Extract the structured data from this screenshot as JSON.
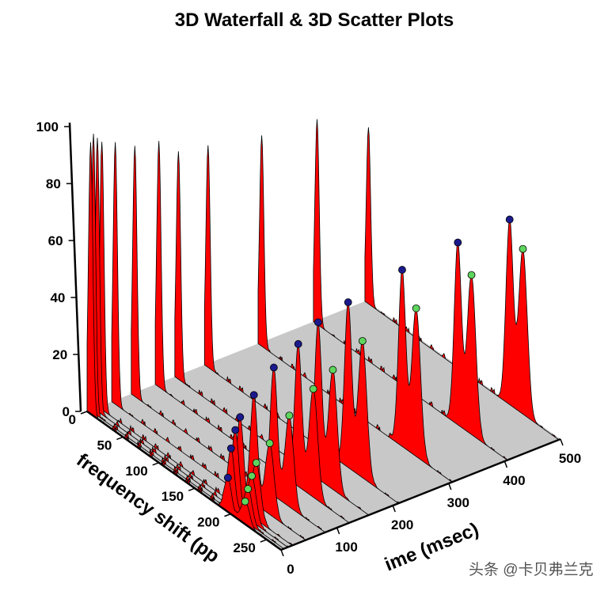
{
  "chart_data": {
    "type": "3d-waterfall-scatter",
    "title": "3D Waterfall & 3D Scatter Plots",
    "xlabel": "frequency shift (pp",
    "ylabel": "ime (msec)",
    "zlabel": "",
    "xlim": [
      0,
      270
    ],
    "ylim": [
      0,
      500
    ],
    "zlim": [
      0,
      100
    ],
    "x_ticks": [
      "0",
      "50",
      "100",
      "150",
      "200",
      "250"
    ],
    "y_ticks": [
      "0",
      "100",
      "200",
      "300",
      "400",
      "500"
    ],
    "z_ticks": [
      "0",
      "20",
      "40",
      "60",
      "80",
      "100"
    ],
    "peak_frequencies": {
      "main": 5,
      "blue": 200,
      "green": 220
    },
    "times": [
      0,
      5,
      12,
      20,
      44,
      79,
      122,
      157,
      210,
      306,
      405,
      497
    ],
    "main_peak_heights": [
      95,
      98,
      96,
      94,
      92,
      88,
      86,
      80,
      78,
      74,
      72,
      62
    ],
    "scatter_series": [
      {
        "color": "#1a1a8c",
        "values": [
          12,
          22,
          28,
          32,
          38,
          45,
          50,
          55,
          58,
          62,
          64,
          65
        ]
      },
      {
        "color": "#5ed65e",
        "values": [
          8,
          12,
          16,
          20,
          25,
          32,
          38,
          42,
          48,
          52,
          56,
          58
        ]
      }
    ],
    "colors": {
      "surface": "#ff0000",
      "floor": "#c8c8c8"
    }
  },
  "watermark": "头条 @卡贝弗兰克"
}
